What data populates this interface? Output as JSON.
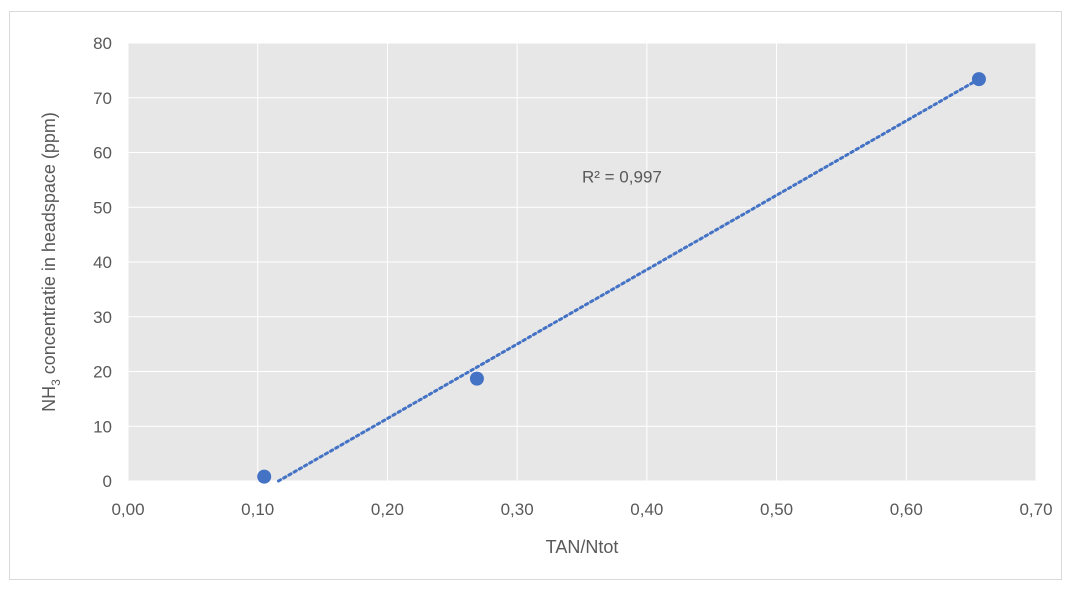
{
  "chart_data": {
    "type": "scatter",
    "xlabel": "TAN/Ntot",
    "ylabel": {
      "prefix": "NH",
      "subscript": "3",
      "suffix": " concentratie in headspace (ppm)"
    },
    "xlim": [
      0,
      0.7
    ],
    "ylim": [
      0,
      80
    ],
    "x_ticks": [
      "0,00",
      "0,10",
      "0,20",
      "0,30",
      "0,40",
      "0,50",
      "0,60",
      "0,70"
    ],
    "y_ticks": [
      "0",
      "10",
      "20",
      "30",
      "40",
      "50",
      "60",
      "70",
      "80"
    ],
    "grid": true,
    "points": [
      {
        "x": 0.105,
        "y": 0.8
      },
      {
        "x": 0.269,
        "y": 18.7
      },
      {
        "x": 0.656,
        "y": 73.4
      }
    ],
    "trendline": {
      "type": "linear",
      "style": "dotted",
      "from": [
        0.116,
        0
      ],
      "to": [
        0.656,
        73.4
      ]
    },
    "annotations": [
      {
        "text": "R² = 0,997",
        "x": 0.35,
        "y": 54.5
      }
    ],
    "colors": {
      "marker": "#4472C4",
      "trendline": "#4472C4",
      "plot_bg": "#e7e7e7",
      "grid": "#ffffff",
      "text": "#595959"
    }
  }
}
